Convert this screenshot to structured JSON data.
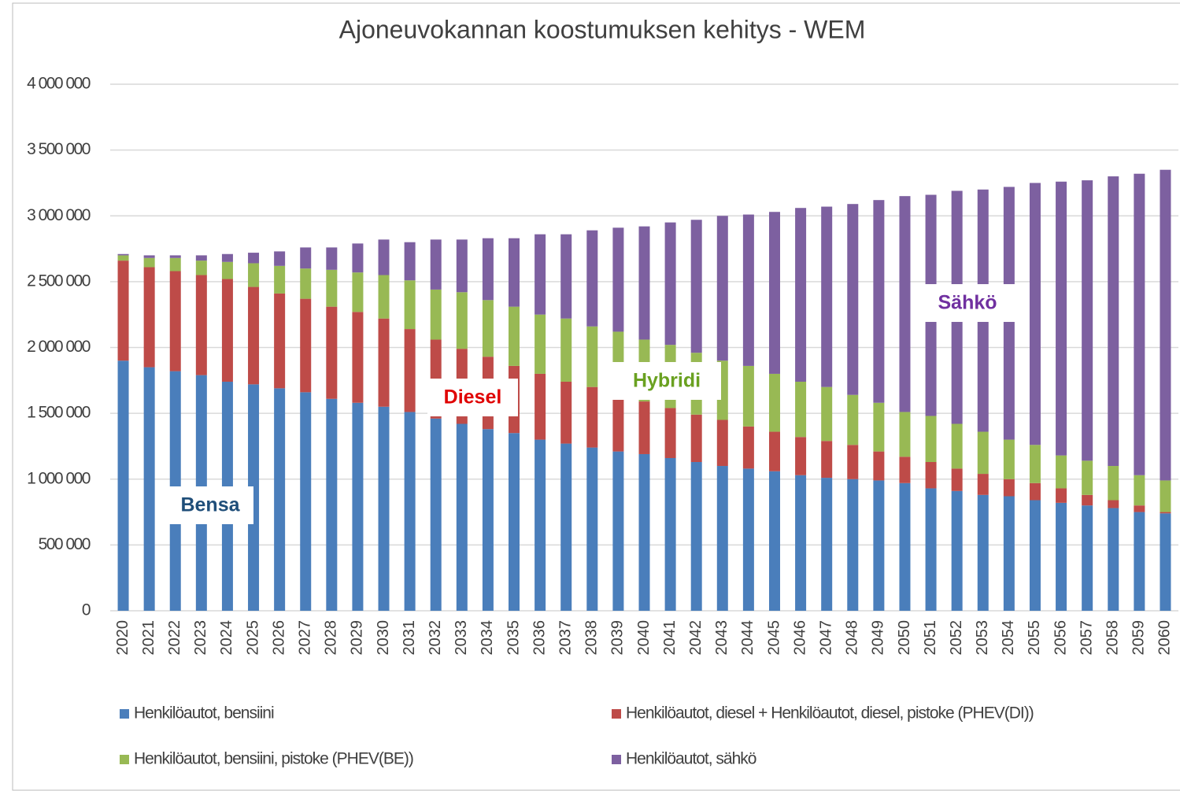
{
  "chart_data": {
    "type": "stacked_bar",
    "title": "Ajoneuvokannan koostumuksen kehitys - WEM",
    "categories": [
      "2020",
      "2021",
      "2022",
      "2023",
      "2024",
      "2025",
      "2026",
      "2027",
      "2028",
      "2029",
      "2030",
      "2031",
      "2032",
      "2033",
      "2034",
      "2035",
      "2036",
      "2037",
      "2038",
      "2039",
      "2040",
      "2041",
      "2042",
      "2043",
      "2044",
      "2045",
      "2046",
      "2047",
      "2048",
      "2049",
      "2050",
      "2051",
      "2052",
      "2053",
      "2054",
      "2055",
      "2056",
      "2057",
      "2058",
      "2059",
      "2060"
    ],
    "series": [
      {
        "name": "Henkilöautot, bensiini",
        "color": "#4a7ebb",
        "values": [
          1900000,
          1850000,
          1820000,
          1790000,
          1740000,
          1720000,
          1690000,
          1660000,
          1610000,
          1580000,
          1550000,
          1510000,
          1460000,
          1420000,
          1380000,
          1350000,
          1300000,
          1270000,
          1240000,
          1210000,
          1190000,
          1160000,
          1130000,
          1100000,
          1080000,
          1060000,
          1030000,
          1010000,
          1000000,
          990000,
          970000,
          930000,
          910000,
          880000,
          870000,
          840000,
          820000,
          800000,
          780000,
          750000,
          740000
        ]
      },
      {
        "name": "Henkilöautot, diesel + Henkilöautot, diesel, pistoke (PHEV(DI))",
        "color": "#be4b48",
        "values": [
          760000,
          760000,
          760000,
          760000,
          780000,
          740000,
          720000,
          710000,
          700000,
          690000,
          670000,
          630000,
          600000,
          570000,
          550000,
          510000,
          500000,
          470000,
          460000,
          430000,
          400000,
          380000,
          360000,
          350000,
          320000,
          300000,
          290000,
          280000,
          260000,
          220000,
          200000,
          200000,
          170000,
          160000,
          130000,
          130000,
          110000,
          80000,
          60000,
          50000,
          10000
        ]
      },
      {
        "name": "Henkilöautot, bensiini, pistoke (PHEV(BE))",
        "color": "#98b954",
        "values": [
          40000,
          70000,
          100000,
          110000,
          130000,
          180000,
          210000,
          230000,
          280000,
          300000,
          330000,
          370000,
          380000,
          430000,
          430000,
          450000,
          450000,
          480000,
          460000,
          480000,
          470000,
          480000,
          470000,
          450000,
          460000,
          440000,
          420000,
          410000,
          380000,
          370000,
          340000,
          350000,
          340000,
          320000,
          300000,
          290000,
          250000,
          260000,
          260000,
          230000,
          240000
        ]
      },
      {
        "name": "Henkilöautot, sähkö",
        "color": "#7d60a0",
        "values": [
          10000,
          20000,
          20000,
          40000,
          60000,
          80000,
          110000,
          160000,
          170000,
          220000,
          270000,
          290000,
          380000,
          400000,
          470000,
          520000,
          610000,
          640000,
          730000,
          790000,
          860000,
          930000,
          1010000,
          1100000,
          1150000,
          1230000,
          1320000,
          1370000,
          1450000,
          1540000,
          1640000,
          1680000,
          1770000,
          1840000,
          1920000,
          1990000,
          2080000,
          2130000,
          2200000,
          2290000,
          2360000
        ]
      }
    ],
    "ylim": [
      0,
      4000000
    ],
    "yticks": [
      0,
      {
        "value": 500000,
        "label": "500 000"
      },
      {
        "value": 1000000,
        "label": "1 000 000"
      },
      {
        "value": 1500000,
        "label": "1 500 000"
      },
      {
        "value": 2000000,
        "label": "2 000 000"
      },
      {
        "value": 2500000,
        "label": "2 500 000"
      },
      {
        "value": 3000000,
        "label": "3 000 000"
      },
      {
        "value": 3500000,
        "label": "3 500 000"
      },
      {
        "value": 4000000,
        "label": "4 000 000"
      }
    ],
    "grid": true,
    "annotations": [
      {
        "text": "Bensa",
        "color": "#1f4e79"
      },
      {
        "text": "Diesel",
        "color": "#e00000"
      },
      {
        "text": "Hybridi",
        "color": "#6aa121"
      },
      {
        "text": "Sähkö",
        "color": "#7030a0"
      }
    ]
  }
}
